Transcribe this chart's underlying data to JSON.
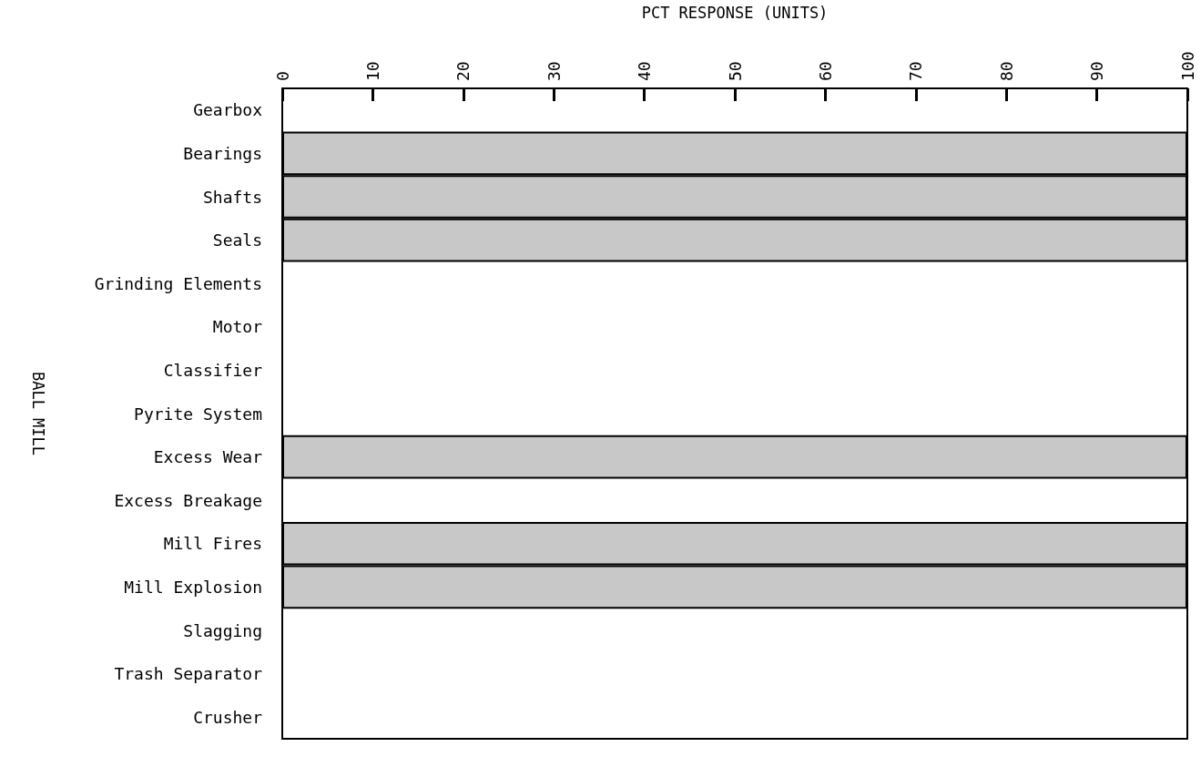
{
  "chart_data": {
    "type": "bar",
    "orientation": "horizontal",
    "xlabel": "PCT RESPONSE (UNITS)",
    "ylabel": "BALL MILL",
    "categories": [
      "Gearbox",
      "Bearings",
      "Shafts",
      "Seals",
      "Grinding Elements",
      "Motor",
      "Classifier",
      "Pyrite System",
      "Excess Wear",
      "Excess Breakage",
      "Mill Fires",
      "Mill Explosion",
      "Slagging",
      "Trash Separator",
      "Crusher"
    ],
    "values": [
      null,
      100,
      100,
      100,
      null,
      null,
      null,
      null,
      100,
      null,
      100,
      100,
      null,
      null,
      null
    ],
    "color": "#c8c8c8",
    "xlim": [
      0,
      100
    ],
    "xticks": [
      0,
      10,
      20,
      30,
      40,
      50,
      60,
      70,
      80,
      90,
      100
    ],
    "grid": false
  }
}
